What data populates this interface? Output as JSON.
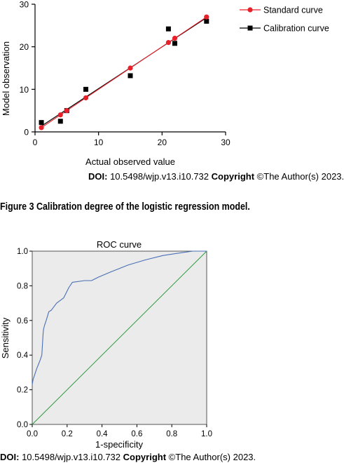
{
  "figure_caption": "Figure 3 Calibration degree of the logistic regression model.",
  "doi_top": {
    "label": "DOI:",
    "doi": "10.5498/wjp.v13.i10.732",
    "copyright_label": "Copyright",
    "copyright_text": "©The Author(s) 2023."
  },
  "doi_bottom": {
    "label": "DOI:",
    "doi": "10.5498/wjp.v13.i10.732",
    "copyright_label": "Copyright",
    "copyright_text": "©The Author(s) 2023."
  },
  "colors": {
    "standard": "#e8202a",
    "calibration": "#000000",
    "roc": "#4a6fb5",
    "diagonal": "#2f9a3f",
    "plot_bg": "#ebebeb"
  },
  "chart_data": [
    {
      "type": "scatter",
      "title": "",
      "xlabel": "Actual observed value",
      "ylabel": "Model observation",
      "xlim": [
        0,
        30
      ],
      "ylim": [
        0,
        30
      ],
      "xticks": [
        "0",
        "10",
        "20",
        "30"
      ],
      "yticks": [
        "0",
        "10",
        "20",
        "30"
      ],
      "legend_position": "top-right",
      "series": [
        {
          "name": "Standard curve",
          "marker": "circle",
          "color": "#e8202a",
          "x": [
            1,
            4,
            5,
            8,
            15,
            21,
            22,
            27
          ],
          "y": [
            1,
            4,
            5,
            8,
            15,
            21,
            22,
            27
          ]
        },
        {
          "name": "Calibration curve",
          "marker": "square",
          "color": "#000000",
          "x": [
            1,
            4,
            5,
            8,
            15,
            21,
            22,
            27
          ],
          "y": [
            2.2,
            2.5,
            5,
            10,
            13.2,
            24.2,
            20.8,
            26
          ]
        }
      ]
    },
    {
      "type": "line",
      "title": "ROC curve",
      "xlabel": "1-specificity",
      "ylabel": "Sensitivity",
      "xlim": [
        0,
        1
      ],
      "ylim": [
        0,
        1
      ],
      "xticks": [
        "0.0",
        "0.2",
        "0.4",
        "0.6",
        "0.8",
        "1.0"
      ],
      "yticks": [
        "0.0",
        "0.2",
        "0.4",
        "0.6",
        "0.8",
        "1.0"
      ],
      "grid": false,
      "series": [
        {
          "color": "#4a6fb5",
          "x": [
            0,
            0.005,
            0.012,
            0.025,
            0.045,
            0.055,
            0.058,
            0.062,
            0.065,
            0.07,
            0.08,
            0.095,
            0.11,
            0.14,
            0.18,
            0.21,
            0.23,
            0.3,
            0.34,
            0.38,
            0.45,
            0.55,
            0.65,
            0.75,
            0.85,
            0.92,
            1.0
          ],
          "y": [
            0.23,
            0.26,
            0.28,
            0.32,
            0.37,
            0.4,
            0.45,
            0.52,
            0.55,
            0.57,
            0.6,
            0.65,
            0.66,
            0.7,
            0.73,
            0.79,
            0.82,
            0.83,
            0.83,
            0.85,
            0.88,
            0.92,
            0.95,
            0.975,
            0.99,
            1.0,
            1.0
          ]
        },
        {
          "color": "#2f9a3f",
          "x": [
            0,
            1
          ],
          "y": [
            0,
            1
          ]
        }
      ]
    }
  ]
}
